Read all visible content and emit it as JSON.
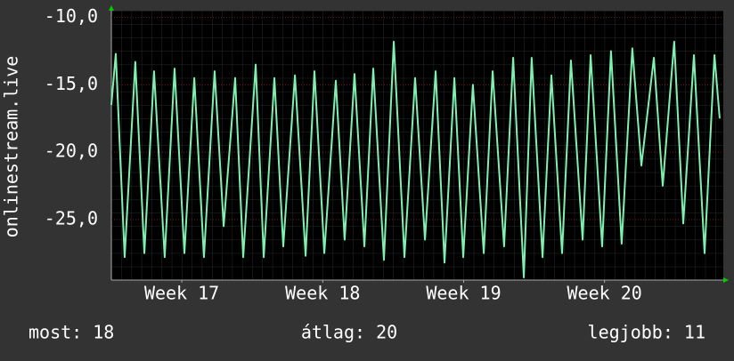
{
  "chart_data": {
    "type": "line",
    "y_label": "onlinestream.live",
    "x": [
      0,
      0.22,
      0.66,
      1.19,
      1.64,
      2.12,
      2.65,
      3.14,
      3.63,
      4.12,
      4.6,
      5.13,
      5.58,
      6.15,
      6.55,
      7.17,
      7.57,
      8.1,
      8.54,
      9.12,
      9.65,
      10.09,
      10.58,
      11.15,
      11.59,
      12.08,
      12.57,
      13.01,
      13.54,
      14.03,
      14.56,
      15.09,
      15.58,
      16.11,
      16.55,
      17.04,
      17.48,
      17.96,
      18.5,
      18.94,
      19.51,
      19.96,
      20.49,
      20.88,
      21.42,
      21.86,
      22.39,
      22.83,
      23.41,
      23.81,
      24.38,
      24.82,
      25.35,
      25.88,
      26.33,
      26.95,
      27.39,
      27.96,
      28.41,
      28.94,
      29.47,
      29.96,
      30.22
    ],
    "series": [
      {
        "name": "onlinestream.live",
        "color": "#80f0b0",
        "values": [
          -16.5,
          -12.7,
          -27.8,
          -13.3,
          -27.5,
          -14,
          -27.8,
          -13.8,
          -27.5,
          -14.5,
          -27.8,
          -14,
          -25.5,
          -14.5,
          -27.8,
          -13.5,
          -27.8,
          -14.5,
          -27,
          -14.3,
          -27.7,
          -14,
          -27.5,
          -14.7,
          -26.5,
          -14.2,
          -27,
          -13.8,
          -28,
          -11.8,
          -27.8,
          -14.5,
          -26.5,
          -14,
          -28.2,
          -14.5,
          -27.8,
          -15,
          -27.5,
          -14,
          -27,
          -13,
          -29.3,
          -13,
          -27.8,
          -14.3,
          -27.5,
          -13.2,
          -26.5,
          -12.8,
          -27,
          -12.5,
          -26.8,
          -12.3,
          -21,
          -13,
          -22.5,
          -11.8,
          -25.3,
          -12.8,
          -27.5,
          -12.8,
          -17.5
        ]
      }
    ],
    "xlim": [
      0,
      30.4
    ],
    "xticks": [
      {
        "value": 3.5,
        "label": "Week 17"
      },
      {
        "value": 10.5,
        "label": "Week 18"
      },
      {
        "value": 17.5,
        "label": "Week 19"
      },
      {
        "value": 24.5,
        "label": "Week 20"
      }
    ],
    "ylim": [
      -29.5,
      -9.5
    ],
    "yticks": [
      {
        "value": -10,
        "label": "-10,0"
      },
      {
        "value": -15,
        "label": "-15,0"
      },
      {
        "value": -20,
        "label": "-20,0"
      },
      {
        "value": -25,
        "label": "-25,0"
      }
    ],
    "grid": true,
    "footer": [
      "most: 18",
      "átlag: 20",
      "legjobb: 11"
    ]
  }
}
